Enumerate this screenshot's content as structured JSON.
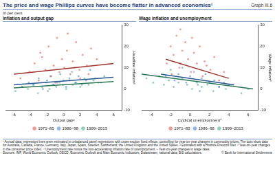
{
  "header": {
    "title": "The price and wage Phillips curves have become flatter in advanced economies¹",
    "graph_label": "Graph III.6",
    "subtitle": "In per cent"
  },
  "chart_data": [
    {
      "type": "scatter",
      "title": "Inflation and output gap",
      "x_label": "Output gap²",
      "y_label": "Headline inflation³",
      "xlim": [
        -7,
        7
      ],
      "xticks": [
        -6,
        -4,
        -2,
        0,
        2,
        4,
        6
      ],
      "ylim": [
        -10,
        30
      ],
      "yticks": [
        -10,
        0,
        10,
        20,
        30
      ],
      "grid": false,
      "legend": "bottom",
      "series": [
        {
          "name": "1971–85",
          "color": "#e8483f",
          "x": [
            -5.2,
            -4.1,
            -3.5,
            -3,
            -2.6,
            -2.2,
            -1.8,
            -1.5,
            -1.2,
            -0.8,
            -0.5,
            -0.2,
            0.1,
            0.4,
            0.8,
            1.1,
            1.5,
            1.9,
            2.3,
            2.8,
            3.3,
            4,
            -1,
            0.5,
            2,
            -2.8,
            1.3,
            3
          ],
          "values": [
            5,
            8,
            12,
            4,
            15,
            9,
            20,
            6,
            11,
            24,
            8,
            14,
            10,
            18,
            7,
            13,
            22,
            9,
            16,
            11,
            19,
            14,
            3,
            26,
            5,
            17,
            10,
            7
          ],
          "fit": {
            "x": [
              -6,
              6
            ],
            "values": [
              7,
              12
            ]
          }
        },
        {
          "name": "1986–98",
          "color": "#3a7bd5",
          "x": [
            -5,
            -4.2,
            -3.6,
            -3,
            -2.5,
            -2,
            -1.6,
            -1.2,
            -0.8,
            -0.4,
            0,
            0.3,
            0.7,
            1,
            1.4,
            1.8,
            2.2,
            2.7,
            3.2,
            3.8,
            4.5,
            -1.9
          ],
          "values": [
            1,
            3,
            2,
            5,
            0,
            4,
            6,
            2,
            3,
            7,
            4,
            1,
            5,
            8,
            3,
            6,
            2,
            4,
            9,
            5,
            3,
            -1
          ],
          "fit": {
            "x": [
              -6,
              6
            ],
            "values": [
              2,
              5.5
            ]
          }
        },
        {
          "name": "1999–2013",
          "color": "#3aa87a",
          "x": [
            -5.8,
            -5,
            -4.3,
            -3.7,
            -3.1,
            -2.6,
            -2.1,
            -1.7,
            -1.3,
            -0.9,
            -0.5,
            -0.1,
            0.3,
            0.7,
            1.1,
            1.5,
            2,
            2.5,
            3,
            3.6,
            4.2,
            4.9
          ],
          "values": [
            -1,
            1,
            0,
            2,
            -2,
            1,
            3,
            0,
            2,
            1,
            3,
            2,
            0,
            4,
            2,
            3,
            1,
            5,
            2,
            4,
            3,
            6
          ],
          "fit": {
            "x": [
              -6,
              6
            ],
            "values": [
              0.5,
              3.5
            ]
          }
        }
      ]
    },
    {
      "type": "scatter",
      "title": "Wage inflation and unemployment",
      "x_label": "Cyclical unemployment⁴",
      "y_label": "Wage inflation⁵",
      "xlim": [
        -5,
        7
      ],
      "xticks": [
        -4,
        -2,
        0,
        2,
        4,
        6
      ],
      "ylim": [
        -10,
        30
      ],
      "yticks": [
        -10,
        0,
        10,
        20,
        30
      ],
      "grid": false,
      "legend": "bottom",
      "series": [
        {
          "name": "1971–85",
          "color": "#e8483f",
          "x": [
            -2.4,
            -2,
            -1.7,
            -1.4,
            -1.1,
            -0.8,
            -0.5,
            -0.2,
            0.1,
            0.4,
            0.7,
            1,
            1.3,
            1.7,
            2.1,
            2.5,
            3,
            3.5,
            -1,
            0.2,
            1.5,
            -1.9
          ],
          "values": [
            12,
            20,
            16,
            25,
            10,
            18,
            22,
            14,
            8,
            17,
            12,
            20,
            6,
            11,
            9,
            15,
            4,
            8,
            28,
            24,
            13,
            7
          ],
          "fit": {
            "x": [
              -2.5,
              4
            ],
            "values": [
              14,
              5
            ]
          }
        },
        {
          "name": "1986–98",
          "color": "#3a7bd5",
          "x": [
            -2.5,
            -2,
            -1.6,
            -1.2,
            -0.8,
            -0.4,
            0,
            0.4,
            0.8,
            1.2,
            1.6,
            2,
            2.5,
            3,
            3.5,
            4,
            -1,
            1
          ],
          "values": [
            6,
            9,
            4,
            7,
            10,
            3,
            6,
            8,
            2,
            5,
            7,
            3,
            4,
            1,
            3,
            2,
            12,
            -1
          ],
          "fit": {
            "x": [
              -3,
              4.5
            ],
            "values": [
              7,
              2
            ]
          }
        },
        {
          "name": "1999–2013",
          "color": "#3aa87a",
          "x": [
            -4.5,
            -3.8,
            -3.2,
            -2.7,
            -2.2,
            -1.7,
            -1.2,
            -0.8,
            -0.3,
            0.2,
            0.7,
            1.2,
            1.8,
            2.4,
            3,
            3.7,
            4.5,
            5.3,
            6
          ],
          "values": [
            5,
            3,
            6,
            2,
            4,
            1,
            3,
            5,
            2,
            0,
            3,
            1,
            2,
            -1,
            1,
            0,
            2,
            -2,
            0
          ],
          "fit": {
            "x": [
              -5,
              6.5
            ],
            "values": [
              7,
              0
            ]
          }
        }
      ]
    }
  ],
  "footer": {
    "notes": "¹ Annual data; regression lines were estimated in unbalanced panel regressions with cross-section fixed effects, controlling for year-on-year changes in commodity prices. The dots show data for Australia, Canada, France, Germany, Italy, Japan, Spain, Sweden, Switzerland, the United Kingdom and the United States.   ² Estimated with a Hodrick-Prescott filter.   ³ Year-on-year changes in the consumer price index.   ⁴ Unemployment rate minus the non-accelerating inflation rate of unemployment.   ⁵ Year-on-year changes in wage rates.",
    "sources": "Sources: IMF, World Economic Outlook; OECD, Economic Outlook and Main Economic Indicators; Datastream; national data; BIS calculations.",
    "copyright": "© Bank for International Settlements"
  }
}
